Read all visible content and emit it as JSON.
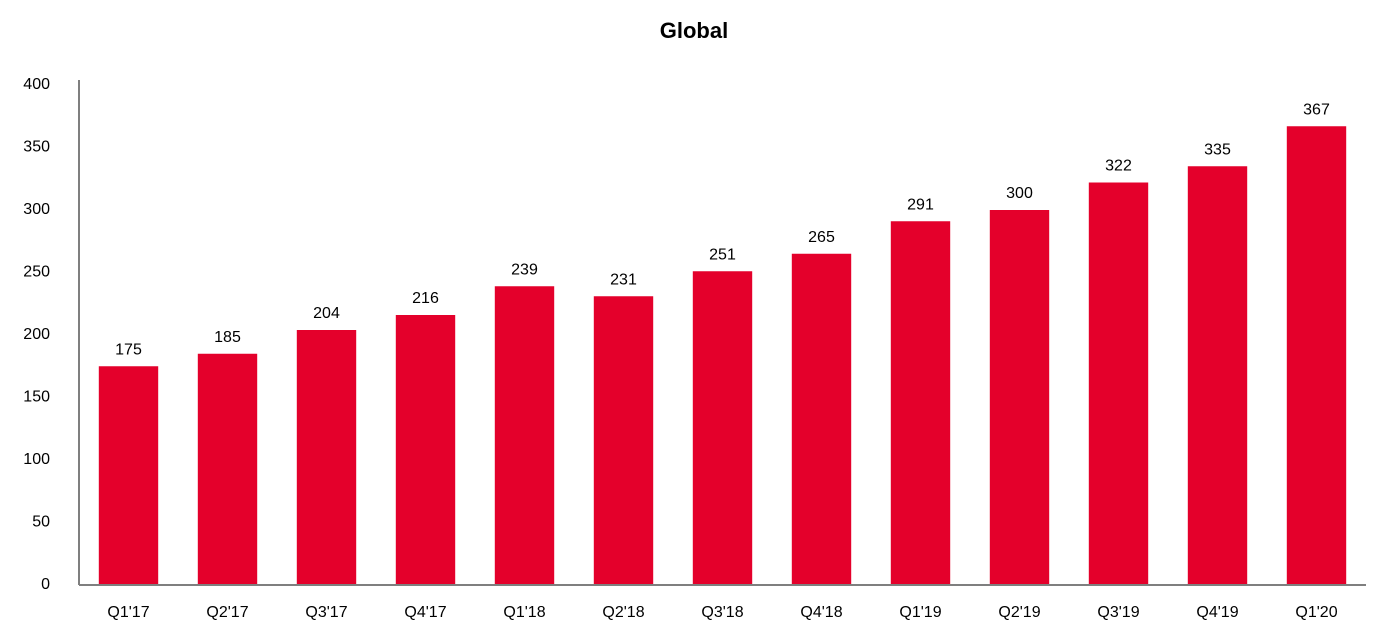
{
  "chart_data": {
    "type": "bar",
    "title": "Global",
    "categories": [
      "Q1'17",
      "Q2'17",
      "Q3'17",
      "Q4'17",
      "Q1'18",
      "Q2'18",
      "Q3'18",
      "Q4'18",
      "Q1'19",
      "Q2'19",
      "Q3'19",
      "Q4'19",
      "Q1'20"
    ],
    "values": [
      175,
      185,
      204,
      216,
      239,
      231,
      251,
      265,
      291,
      300,
      322,
      335,
      367
    ],
    "color": "#e4002b",
    "ylim": [
      0,
      400
    ],
    "yticks": [
      0,
      50,
      100,
      150,
      200,
      250,
      300,
      350,
      400
    ],
    "grid": false
  }
}
